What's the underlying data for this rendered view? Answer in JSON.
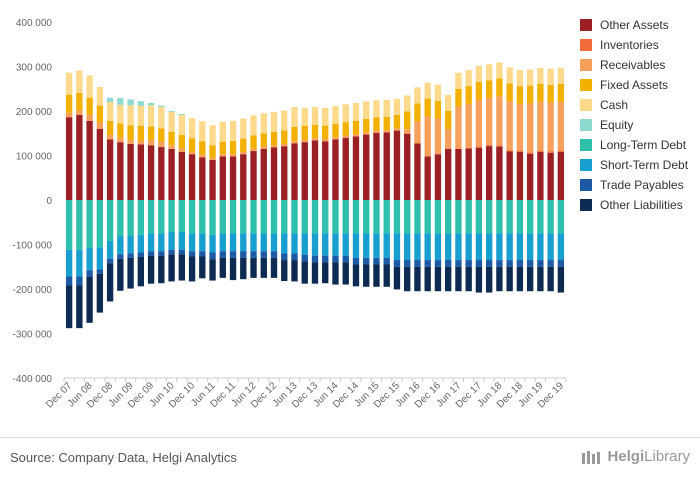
{
  "chart_data": {
    "type": "bar",
    "stacked": true,
    "ylim": [
      -400000,
      400000
    ],
    "yticks": [
      400000,
      300000,
      200000,
      100000,
      0,
      -100000,
      -200000,
      -300000,
      -400000
    ],
    "ytick_labels": [
      "400 000",
      "300 000",
      "200 000",
      "100 000",
      "0",
      "-100 000",
      "-200 000",
      "-300 000",
      "-400 000"
    ],
    "xtick_labels": [
      "Dec 07",
      "Jun 08",
      "Dec 08",
      "Jun 09",
      "Dec 09",
      "Jun 10",
      "Dec 10",
      "Jun 11",
      "Dec 11",
      "Jun 12",
      "Dec 12",
      "Jun 13",
      "Dec 13",
      "Jun 14",
      "Dec 14",
      "Jun 15",
      "Dec 15",
      "Jun 16",
      "Dec 16",
      "Jun 17",
      "Dec 17",
      "Jun 18",
      "Dec 18",
      "Jun 19",
      "Dec 19"
    ],
    "legend_position": "right",
    "grid": false,
    "n_bars": 49,
    "first_bar": "Dec 07",
    "bar_interval": "quarter",
    "series": [
      {
        "name": "Other Assets",
        "color": "#9c1f24",
        "values": [
          186000,
          191000,
          178000,
          160000,
          136000,
          130000,
          126000,
          125000,
          123000,
          119000,
          115000,
          108000,
          103000,
          96000,
          90000,
          98000,
          98000,
          103000,
          110000,
          115000,
          118000,
          121000,
          127000,
          130000,
          134000,
          132000,
          136000,
          140000,
          143000,
          147000,
          151000,
          152000,
          156000,
          149000,
          127000,
          98000,
          103000,
          115000,
          115000,
          116000,
          117000,
          121000,
          120000,
          109000,
          108000,
          104000,
          108000,
          106000,
          108000
        ]
      },
      {
        "name": "Inventories",
        "color": "#f26b38",
        "values": [
          0,
          0,
          0,
          0,
          0,
          0,
          0,
          0,
          0,
          0,
          0,
          0,
          0,
          0,
          0,
          0,
          0,
          0,
          0,
          0,
          0,
          0,
          0,
          0,
          0,
          0,
          0,
          0,
          0,
          0,
          0,
          0,
          0,
          0,
          0,
          0,
          0,
          0,
          0,
          0,
          3000,
          3000,
          3000,
          3000,
          3000,
          3000,
          3000,
          3000,
          3000
        ]
      },
      {
        "name": "Receivables",
        "color": "#f7a05b",
        "values": [
          10000,
          10000,
          14000,
          14000,
          10000,
          10000,
          8000,
          8000,
          12000,
          12000,
          8000,
          8000,
          6000,
          6000,
          5000,
          5000,
          5000,
          5000,
          5000,
          5000,
          5000,
          5000,
          5000,
          5000,
          5000,
          5000,
          5000,
          5000,
          5000,
          5000,
          5000,
          5000,
          5000,
          10000,
          50000,
          90000,
          80000,
          45000,
          95000,
          100000,
          105000,
          105000,
          110000,
          110000,
          105000,
          110000,
          110000,
          110000,
          110000
        ]
      },
      {
        "name": "Fixed Assets",
        "color": "#f2b000",
        "values": [
          40000,
          40000,
          38000,
          38000,
          32000,
          32000,
          34000,
          34000,
          30000,
          30000,
          30000,
          30000,
          30000,
          30000,
          28000,
          28000,
          30000,
          30000,
          30000,
          30000,
          30000,
          30000,
          32000,
          32000,
          30000,
          30000,
          30000,
          30000,
          30000,
          30000,
          30000,
          30000,
          30000,
          40000,
          40000,
          40000,
          40000,
          40000,
          40000,
          40000,
          40000,
          40000,
          40000,
          40000,
          40000,
          40000,
          40000,
          40000,
          40000
        ]
      },
      {
        "name": "Cash",
        "color": "#fdd98c",
        "values": [
          50000,
          50000,
          50000,
          42000,
          42000,
          42000,
          45000,
          45000,
          48000,
          48000,
          45000,
          45000,
          45000,
          45000,
          45000,
          45000,
          45000,
          45000,
          45000,
          45000,
          45000,
          45000,
          45000,
          40000,
          40000,
          40000,
          40000,
          40000,
          40000,
          40000,
          38000,
          38000,
          36000,
          36000,
          36000,
          36000,
          36000,
          36000,
          36000,
          36000,
          36000,
          36000,
          36000,
          36000,
          36000,
          36000,
          36000,
          36000,
          36000
        ]
      },
      {
        "name": "Equity",
        "color": "#8ed9d0",
        "values": [
          0,
          0,
          0,
          0,
          10000,
          15000,
          13000,
          10000,
          5000,
          3000,
          2000,
          2000,
          0,
          0,
          0,
          0,
          0,
          0,
          0,
          0,
          0,
          0,
          0,
          0,
          0,
          0,
          0,
          0,
          0,
          0,
          0,
          0,
          0,
          0,
          0,
          0,
          0,
          0,
          0,
          0,
          0,
          0,
          0,
          0,
          0,
          0,
          0,
          0,
          0
        ]
      },
      {
        "name": "Long-Term Debt",
        "color": "#2fbfad",
        "values": [
          -112000,
          -112000,
          -108000,
          -106000,
          -92000,
          -82000,
          -80000,
          -78000,
          -75000,
          -75000,
          -72000,
          -72000,
          -75000,
          -75000,
          -78000,
          -75000,
          -75000,
          -75000,
          -75000,
          -75000,
          -75000,
          -75000,
          -75000,
          -75000,
          -75000,
          -75000,
          -75000,
          -75000,
          -75000,
          -75000,
          -75000,
          -75000,
          -75000,
          -75000,
          -75000,
          -75000,
          -75000,
          -75000,
          -75000,
          -75000,
          -75000,
          -75000,
          -75000,
          -75000,
          -75000,
          -75000,
          -75000,
          -75000,
          -75000
        ]
      },
      {
        "name": "Short-Term Debt",
        "color": "#169fcf",
        "values": [
          -60000,
          -60000,
          -50000,
          -50000,
          -40000,
          -40000,
          -40000,
          -40000,
          -40000,
          -40000,
          -40000,
          -40000,
          -40000,
          -40000,
          -40000,
          -40000,
          -40000,
          -40000,
          -40000,
          -40000,
          -40000,
          -45000,
          -45000,
          -48000,
          -50000,
          -50000,
          -50000,
          -50000,
          -55000,
          -55000,
          -55000,
          -55000,
          -60000,
          -60000,
          -60000,
          -60000,
          -60000,
          -60000,
          -60000,
          -60000,
          -60000,
          -60000,
          -60000,
          -60000,
          -60000,
          -60000,
          -60000,
          -60000,
          -60000
        ]
      },
      {
        "name": "Trade Payables",
        "color": "#1c5aa6",
        "values": [
          -20000,
          -20000,
          -15000,
          -10000,
          -10000,
          -10000,
          -10000,
          -10000,
          -10000,
          -10000,
          -10000,
          -10000,
          -12000,
          -12000,
          -15000,
          -15000,
          -15000,
          -15000,
          -15000,
          -15000,
          -15000,
          -15000,
          -15000,
          -15000,
          -15000,
          -15000,
          -15000,
          -15000,
          -15000,
          -15000,
          -15000,
          -15000,
          -15000,
          -15000,
          -15000,
          -15000,
          -15000,
          -15000,
          -15000,
          -15000,
          -15000,
          -15000,
          -15000,
          -15000,
          -15000,
          -15000,
          -15000,
          -15000,
          -15000
        ]
      },
      {
        "name": "Other Liabilities",
        "color": "#0d2b52",
        "values": [
          -96000,
          -96000,
          -103000,
          -87000,
          -86000,
          -72000,
          -69000,
          -66000,
          -63000,
          -62000,
          -61000,
          -59000,
          -56000,
          -49000,
          -48000,
          -45000,
          -50000,
          -48000,
          -45000,
          -45000,
          -45000,
          -47000,
          -48000,
          -50000,
          -48000,
          -47000,
          -50000,
          -50000,
          -49000,
          -50000,
          -50000,
          -50000,
          -51000,
          -55000,
          -55000,
          -55000,
          -55000,
          -55000,
          -55000,
          -55000,
          -58000,
          -58000,
          -55000,
          -55000,
          -55000,
          -55000,
          -55000,
          -55000,
          -58000
        ]
      }
    ]
  },
  "source_text": "Source: Company Data, Helgi Analytics",
  "logo_text_a": "Helgi",
  "logo_text_b": "Library"
}
